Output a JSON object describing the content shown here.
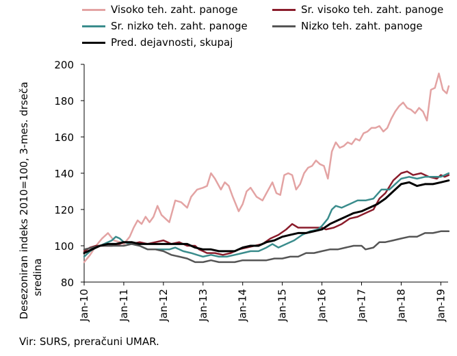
{
  "chart_data": {
    "type": "line",
    "ylabel": "Desezoniran indeks 2010=100, 3-mes. drseča sredina",
    "ylim": [
      80,
      200
    ],
    "yticks": [
      80,
      100,
      120,
      140,
      160,
      180,
      200
    ],
    "xticks": [
      "Jan-10",
      "Jan-11",
      "Jan-12",
      "Jan-13",
      "Jan-14",
      "Jan-15",
      "Jan-16",
      "Jan-17",
      "Jan-18",
      "Jan-19"
    ],
    "xlim": [
      2010.0,
      2019.0
    ],
    "grid": false,
    "legend_position": "top",
    "series": [
      {
        "name": "Visoko teh. zaht. panoge",
        "color": "#e3a3a3",
        "points": [
          [
            2010.0,
            91
          ],
          [
            2010.15,
            95
          ],
          [
            2010.3,
            100
          ],
          [
            2010.45,
            104
          ],
          [
            2010.6,
            107
          ],
          [
            2010.75,
            103
          ],
          [
            2010.9,
            102
          ],
          [
            2011.0,
            101
          ],
          [
            2011.15,
            105
          ],
          [
            2011.25,
            110
          ],
          [
            2011.35,
            114
          ],
          [
            2011.45,
            112
          ],
          [
            2011.55,
            116
          ],
          [
            2011.65,
            113
          ],
          [
            2011.75,
            116
          ],
          [
            2011.85,
            122
          ],
          [
            2011.95,
            117
          ],
          [
            2012.05,
            115
          ],
          [
            2012.15,
            113
          ],
          [
            2012.3,
            125
          ],
          [
            2012.45,
            124
          ],
          [
            2012.6,
            121
          ],
          [
            2012.7,
            127
          ],
          [
            2012.85,
            131
          ],
          [
            2013.0,
            132
          ],
          [
            2013.1,
            133
          ],
          [
            2013.2,
            140
          ],
          [
            2013.3,
            137
          ],
          [
            2013.45,
            131
          ],
          [
            2013.55,
            135
          ],
          [
            2013.65,
            133
          ],
          [
            2013.75,
            127
          ],
          [
            2013.9,
            119
          ],
          [
            2014.0,
            123
          ],
          [
            2014.1,
            130
          ],
          [
            2014.2,
            132
          ],
          [
            2014.35,
            127
          ],
          [
            2014.5,
            125
          ],
          [
            2014.6,
            129
          ],
          [
            2014.75,
            135
          ],
          [
            2014.85,
            129
          ],
          [
            2014.95,
            128
          ],
          [
            2015.05,
            139
          ],
          [
            2015.15,
            140
          ],
          [
            2015.25,
            139
          ],
          [
            2015.35,
            131
          ],
          [
            2015.45,
            134
          ],
          [
            2015.55,
            140
          ],
          [
            2015.65,
            143
          ],
          [
            2015.75,
            144
          ],
          [
            2015.85,
            147
          ],
          [
            2015.95,
            145
          ],
          [
            2016.05,
            144
          ],
          [
            2016.15,
            137
          ],
          [
            2016.25,
            152
          ],
          [
            2016.35,
            157
          ],
          [
            2016.45,
            154
          ],
          [
            2016.55,
            155
          ],
          [
            2016.65,
            157
          ],
          [
            2016.75,
            156
          ],
          [
            2016.85,
            159
          ],
          [
            2016.95,
            158
          ],
          [
            2017.05,
            162
          ],
          [
            2017.15,
            163
          ],
          [
            2017.25,
            165
          ],
          [
            2017.35,
            165
          ],
          [
            2017.45,
            166
          ],
          [
            2017.55,
            163
          ],
          [
            2017.65,
            165
          ],
          [
            2017.75,
            170
          ],
          [
            2017.85,
            174
          ],
          [
            2017.95,
            177
          ],
          [
            2018.05,
            179
          ],
          [
            2018.15,
            176
          ],
          [
            2018.25,
            175
          ],
          [
            2018.35,
            173
          ],
          [
            2018.45,
            176
          ],
          [
            2018.55,
            174
          ],
          [
            2018.65,
            169
          ],
          [
            2018.75,
            186
          ],
          [
            2018.85,
            187
          ],
          [
            2018.95,
            195
          ],
          [
            2019.05,
            186
          ],
          [
            2019.15,
            184
          ],
          [
            2019.2,
            188
          ]
        ]
      },
      {
        "name": "Sr. visoko teh. zaht. panoge",
        "color": "#8a1c2b",
        "points": [
          [
            2010.0,
            97
          ],
          [
            2010.15,
            99
          ],
          [
            2010.3,
            100
          ],
          [
            2010.5,
            100
          ],
          [
            2010.7,
            100
          ],
          [
            2010.9,
            101
          ],
          [
            2011.0,
            102
          ],
          [
            2011.2,
            101
          ],
          [
            2011.4,
            102
          ],
          [
            2011.6,
            101
          ],
          [
            2011.8,
            102
          ],
          [
            2012.0,
            103
          ],
          [
            2012.1,
            102
          ],
          [
            2012.2,
            101
          ],
          [
            2012.4,
            102
          ],
          [
            2012.6,
            100
          ],
          [
            2012.8,
            100
          ],
          [
            2012.9,
            98
          ],
          [
            2013.0,
            97
          ],
          [
            2013.1,
            96
          ],
          [
            2013.3,
            96
          ],
          [
            2013.5,
            95
          ],
          [
            2013.7,
            96
          ],
          [
            2013.9,
            98
          ],
          [
            2014.1,
            99
          ],
          [
            2014.3,
            100
          ],
          [
            2014.5,
            101
          ],
          [
            2014.7,
            104
          ],
          [
            2014.9,
            106
          ],
          [
            2015.1,
            109
          ],
          [
            2015.25,
            112
          ],
          [
            2015.4,
            110
          ],
          [
            2015.6,
            110
          ],
          [
            2015.8,
            110
          ],
          [
            2016.0,
            110
          ],
          [
            2016.1,
            109
          ],
          [
            2016.3,
            110
          ],
          [
            2016.5,
            112
          ],
          [
            2016.7,
            115
          ],
          [
            2016.9,
            116
          ],
          [
            2017.1,
            118
          ],
          [
            2017.3,
            120
          ],
          [
            2017.45,
            126
          ],
          [
            2017.6,
            129
          ],
          [
            2017.8,
            136
          ],
          [
            2018.0,
            140
          ],
          [
            2018.15,
            141
          ],
          [
            2018.3,
            139
          ],
          [
            2018.5,
            140
          ],
          [
            2018.7,
            138
          ],
          [
            2018.9,
            137
          ],
          [
            2019.0,
            139
          ],
          [
            2019.1,
            138
          ],
          [
            2019.2,
            139
          ]
        ]
      },
      {
        "name": "Sr. nizko teh. zaht. panoge",
        "color": "#3a8c8c",
        "points": [
          [
            2010.0,
            94
          ],
          [
            2010.15,
            97
          ],
          [
            2010.3,
            99
          ],
          [
            2010.5,
            101
          ],
          [
            2010.7,
            103
          ],
          [
            2010.8,
            105
          ],
          [
            2010.9,
            104
          ],
          [
            2011.0,
            102
          ],
          [
            2011.2,
            101
          ],
          [
            2011.4,
            100
          ],
          [
            2011.6,
            98
          ],
          [
            2011.8,
            98
          ],
          [
            2012.0,
            98
          ],
          [
            2012.15,
            98
          ],
          [
            2012.3,
            99
          ],
          [
            2012.5,
            97
          ],
          [
            2012.7,
            96
          ],
          [
            2012.85,
            95
          ],
          [
            2013.0,
            94
          ],
          [
            2013.2,
            95
          ],
          [
            2013.4,
            94
          ],
          [
            2013.6,
            94
          ],
          [
            2013.8,
            95
          ],
          [
            2014.0,
            96
          ],
          [
            2014.2,
            97
          ],
          [
            2014.4,
            97
          ],
          [
            2014.6,
            99
          ],
          [
            2014.75,
            101
          ],
          [
            2014.9,
            99
          ],
          [
            2015.1,
            101
          ],
          [
            2015.3,
            103
          ],
          [
            2015.5,
            106
          ],
          [
            2015.7,
            108
          ],
          [
            2015.9,
            109
          ],
          [
            2016.0,
            111
          ],
          [
            2016.15,
            115
          ],
          [
            2016.25,
            120
          ],
          [
            2016.35,
            122
          ],
          [
            2016.5,
            121
          ],
          [
            2016.7,
            123
          ],
          [
            2016.9,
            125
          ],
          [
            2017.1,
            125
          ],
          [
            2017.3,
            126
          ],
          [
            2017.5,
            131
          ],
          [
            2017.7,
            131
          ],
          [
            2017.85,
            134
          ],
          [
            2018.0,
            137
          ],
          [
            2018.2,
            138
          ],
          [
            2018.4,
            137
          ],
          [
            2018.6,
            138
          ],
          [
            2018.8,
            138
          ],
          [
            2019.0,
            138
          ],
          [
            2019.2,
            140
          ]
        ]
      },
      {
        "name": "Nizko teh. zaht. panoge",
        "color": "#555555",
        "points": [
          [
            2010.0,
            98
          ],
          [
            2010.2,
            99
          ],
          [
            2010.4,
            100
          ],
          [
            2010.6,
            100
          ],
          [
            2010.8,
            100
          ],
          [
            2011.0,
            100
          ],
          [
            2011.2,
            101
          ],
          [
            2011.4,
            100
          ],
          [
            2011.6,
            98
          ],
          [
            2011.8,
            98
          ],
          [
            2012.0,
            97
          ],
          [
            2012.2,
            95
          ],
          [
            2012.4,
            94
          ],
          [
            2012.6,
            93
          ],
          [
            2012.8,
            91
          ],
          [
            2013.0,
            91
          ],
          [
            2013.2,
            92
          ],
          [
            2013.4,
            91
          ],
          [
            2013.6,
            91
          ],
          [
            2013.8,
            91
          ],
          [
            2014.0,
            92
          ],
          [
            2014.2,
            92
          ],
          [
            2014.4,
            92
          ],
          [
            2014.6,
            92
          ],
          [
            2014.8,
            93
          ],
          [
            2015.0,
            93
          ],
          [
            2015.2,
            94
          ],
          [
            2015.4,
            94
          ],
          [
            2015.6,
            96
          ],
          [
            2015.8,
            96
          ],
          [
            2016.0,
            97
          ],
          [
            2016.2,
            98
          ],
          [
            2016.4,
            98
          ],
          [
            2016.6,
            99
          ],
          [
            2016.8,
            100
          ],
          [
            2017.0,
            100
          ],
          [
            2017.1,
            98
          ],
          [
            2017.3,
            99
          ],
          [
            2017.45,
            102
          ],
          [
            2017.6,
            102
          ],
          [
            2017.8,
            103
          ],
          [
            2018.0,
            104
          ],
          [
            2018.2,
            105
          ],
          [
            2018.4,
            105
          ],
          [
            2018.6,
            107
          ],
          [
            2018.8,
            107
          ],
          [
            2019.0,
            108
          ],
          [
            2019.2,
            108
          ]
        ]
      },
      {
        "name": "Pred. dejavnosti, skupaj",
        "color": "#000000",
        "points": [
          [
            2010.0,
            96
          ],
          [
            2010.2,
            98
          ],
          [
            2010.4,
            100
          ],
          [
            2010.6,
            101
          ],
          [
            2010.8,
            101
          ],
          [
            2011.0,
            102
          ],
          [
            2011.2,
            102
          ],
          [
            2011.4,
            101
          ],
          [
            2011.6,
            101
          ],
          [
            2011.8,
            101
          ],
          [
            2012.0,
            101
          ],
          [
            2012.2,
            101
          ],
          [
            2012.4,
            101
          ],
          [
            2012.6,
            101
          ],
          [
            2012.8,
            99
          ],
          [
            2013.0,
            98
          ],
          [
            2013.2,
            98
          ],
          [
            2013.4,
            97
          ],
          [
            2013.6,
            97
          ],
          [
            2013.8,
            97
          ],
          [
            2014.0,
            99
          ],
          [
            2014.2,
            100
          ],
          [
            2014.4,
            100
          ],
          [
            2014.6,
            102
          ],
          [
            2014.8,
            103
          ],
          [
            2015.0,
            105
          ],
          [
            2015.2,
            106
          ],
          [
            2015.4,
            107
          ],
          [
            2015.6,
            107
          ],
          [
            2015.8,
            108
          ],
          [
            2016.0,
            109
          ],
          [
            2016.2,
            112
          ],
          [
            2016.4,
            114
          ],
          [
            2016.6,
            116
          ],
          [
            2016.8,
            118
          ],
          [
            2017.0,
            119
          ],
          [
            2017.2,
            121
          ],
          [
            2017.4,
            123
          ],
          [
            2017.6,
            126
          ],
          [
            2017.8,
            130
          ],
          [
            2018.0,
            134
          ],
          [
            2018.2,
            135
          ],
          [
            2018.4,
            133
          ],
          [
            2018.6,
            134
          ],
          [
            2018.8,
            134
          ],
          [
            2019.0,
            135
          ],
          [
            2019.2,
            136
          ]
        ]
      }
    ]
  },
  "legend": [
    {
      "label": "Visoko teh. zaht. panoge",
      "color": "#e3a3a3"
    },
    {
      "label": "Sr. visoko teh. zaht. panoge",
      "color": "#8a1c2b"
    },
    {
      "label": "Sr. nizko teh. zaht. panoge",
      "color": "#3a8c8c"
    },
    {
      "label": "Nizko teh. zaht. panoge",
      "color": "#555555"
    },
    {
      "label": "Pred. dejavnosti, skupaj",
      "color": "#000000"
    }
  ],
  "source": "Vir: SURS, preračuni UMAR."
}
